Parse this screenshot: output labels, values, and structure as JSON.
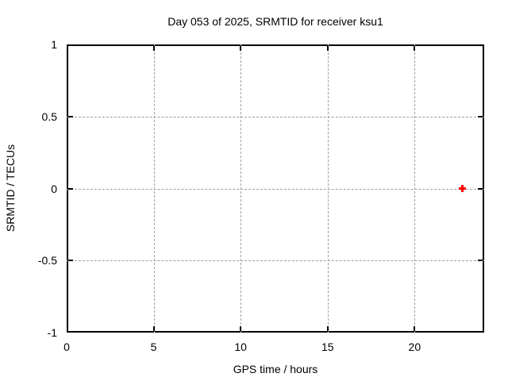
{
  "chart_data": {
    "type": "scatter",
    "title": "Day 053 of 2025, SRMTID for receiver ksu1",
    "xlabel": "GPS time / hours",
    "ylabel": "SRMTID / TECUs",
    "xlim": [
      0,
      24
    ],
    "ylim": [
      -1,
      1
    ],
    "xticks": [
      {
        "value": 0,
        "label": "0"
      },
      {
        "value": 5,
        "label": "5"
      },
      {
        "value": 10,
        "label": "10"
      },
      {
        "value": 15,
        "label": "15"
      },
      {
        "value": 20,
        "label": "20"
      }
    ],
    "yticks": [
      {
        "value": 1,
        "label": "1"
      },
      {
        "value": 0.5,
        "label": "0.5"
      },
      {
        "value": 0,
        "label": "0"
      },
      {
        "value": -0.5,
        "label": "-0.5"
      },
      {
        "value": -1,
        "label": "-1"
      }
    ],
    "grid": true,
    "legend": "none",
    "colors": {
      "marker": "#ff0000",
      "grid": "#a0a0a0",
      "axis": "#000000",
      "background": "#ffffff"
    },
    "series": [
      {
        "name": "SRMTID",
        "marker": "plus",
        "color": "#ff0000",
        "points": [
          {
            "x": 22.75,
            "y": 0.0
          }
        ]
      }
    ]
  }
}
